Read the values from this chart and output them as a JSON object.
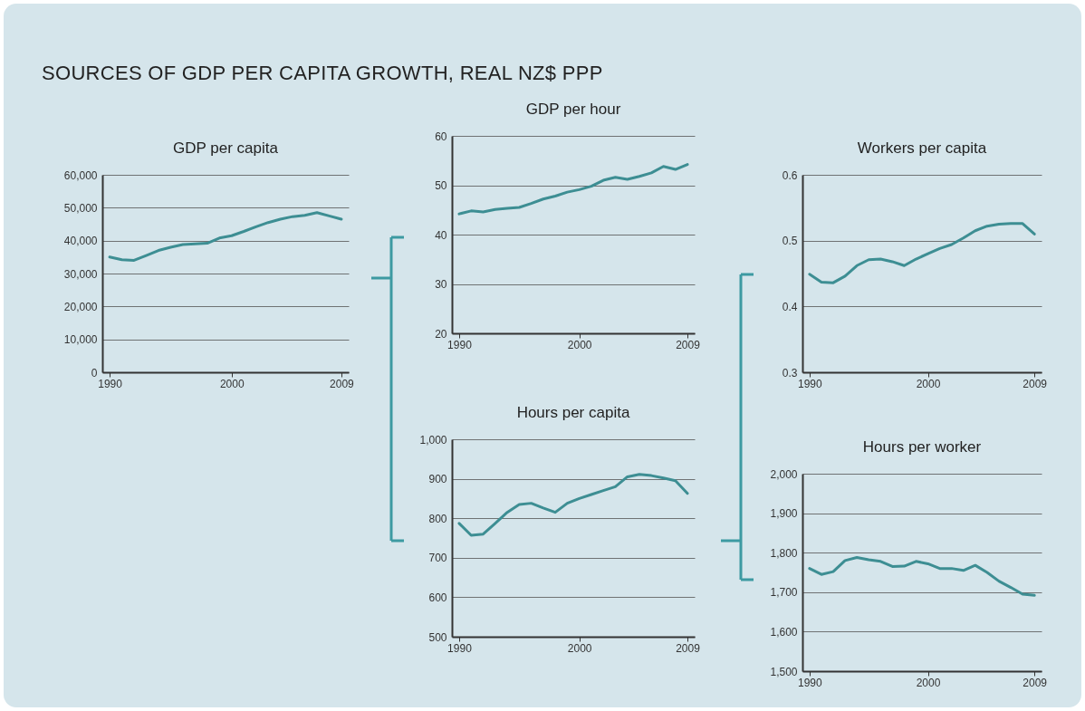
{
  "chart_data": [
    {
      "type": "line",
      "title": "GDP per capita",
      "annotations": [
        "SOURCES OF GDP PER CAPITA GROWTH, REAL NZ$ PPP"
      ],
      "x": [
        1990,
        1991,
        1992,
        1993,
        1994,
        1995,
        1996,
        1997,
        1998,
        1999,
        2000,
        2001,
        2002,
        2003,
        2004,
        2005,
        2006,
        2007,
        2008,
        2009
      ],
      "series": [
        {
          "color": "#3d8e93",
          "values": [
            35000,
            34200,
            34000,
            35500,
            37000,
            38000,
            38800,
            39000,
            39200,
            40800,
            41500,
            42800,
            44200,
            45500,
            46500,
            47300,
            47700,
            48500,
            47500,
            46500
          ]
        }
      ],
      "xlim": [
        1989.4,
        2009.6
      ],
      "xticks": [
        1990,
        2000,
        2009
      ],
      "ylim": [
        0,
        60000
      ],
      "yticks": [
        0,
        {
          "value": 10000,
          "label": "10,000"
        },
        {
          "value": 20000,
          "label": "20,000"
        },
        {
          "value": 30000,
          "label": "30,000"
        },
        {
          "value": 40000,
          "label": "40,000"
        },
        {
          "value": 50000,
          "label": "50,000"
        },
        {
          "value": 60000,
          "label": "60,000"
        }
      ],
      "grid": "y"
    },
    {
      "type": "line",
      "title": "GDP per hour",
      "x": [
        1990,
        1991,
        1992,
        1993,
        1994,
        1995,
        1996,
        1997,
        1998,
        1999,
        2000,
        2001,
        2002,
        2003,
        2004,
        2005,
        2006,
        2007,
        2008,
        2009
      ],
      "series": [
        {
          "color": "#3d8e93",
          "values": [
            44.2,
            44.8,
            44.6,
            45.1,
            45.3,
            45.5,
            46.3,
            47.2,
            47.8,
            48.6,
            49.1,
            49.8,
            51.0,
            51.6,
            51.2,
            51.8,
            52.5,
            53.8,
            53.2,
            54.2
          ]
        }
      ],
      "xlim": [
        1989.4,
        2009.6
      ],
      "xticks": [
        1990,
        2000,
        2009
      ],
      "ylim": [
        20,
        60
      ],
      "yticks": [
        20,
        30,
        40,
        50,
        60
      ],
      "grid": "y"
    },
    {
      "type": "line",
      "title": "Hours per capita",
      "x": [
        1990,
        1991,
        1992,
        1993,
        1994,
        1995,
        1996,
        1997,
        1998,
        1999,
        2000,
        2001,
        2002,
        2003,
        2004,
        2005,
        2006,
        2007,
        2008,
        2009
      ],
      "series": [
        {
          "color": "#3d8e93",
          "values": [
            787,
            757,
            760,
            787,
            815,
            835,
            838,
            826,
            815,
            838,
            850,
            860,
            870,
            880,
            905,
            911,
            908,
            902,
            895,
            863
          ]
        }
      ],
      "xlim": [
        1989.4,
        2009.6
      ],
      "xticks": [
        1990,
        2000,
        2009
      ],
      "ylim": [
        500,
        1000
      ],
      "yticks": [
        500,
        600,
        700,
        800,
        900,
        {
          "value": 1000,
          "label": "1,000"
        }
      ],
      "grid": "y"
    },
    {
      "type": "line",
      "title": "Workers per capita",
      "x": [
        1990,
        1991,
        1992,
        1993,
        1994,
        1995,
        1996,
        1997,
        1998,
        1999,
        2000,
        2001,
        2002,
        2003,
        2004,
        2005,
        2006,
        2007,
        2008,
        2009
      ],
      "series": [
        {
          "color": "#3d8e93",
          "values": [
            0.449,
            0.437,
            0.436,
            0.446,
            0.462,
            0.471,
            0.472,
            0.468,
            0.462,
            0.472,
            0.48,
            0.488,
            0.494,
            0.504,
            0.515,
            0.522,
            0.525,
            0.526,
            0.526,
            0.51
          ]
        }
      ],
      "xlim": [
        1989.4,
        2009.6
      ],
      "xticks": [
        1990,
        2000,
        2009
      ],
      "ylim": [
        0.3,
        0.6
      ],
      "yticks": [
        0.3,
        0.4,
        0.5,
        0.6
      ],
      "grid": "y"
    },
    {
      "type": "line",
      "title": "Hours per worker",
      "x": [
        1990,
        1991,
        1992,
        1993,
        1994,
        1995,
        1996,
        1997,
        1998,
        1999,
        2000,
        2001,
        2002,
        2003,
        2004,
        2005,
        2006,
        2007,
        2008,
        2009
      ],
      "series": [
        {
          "color": "#3d8e93",
          "values": [
            1760,
            1745,
            1752,
            1780,
            1788,
            1782,
            1778,
            1765,
            1766,
            1778,
            1772,
            1760,
            1760,
            1755,
            1768,
            1750,
            1728,
            1712,
            1695,
            1692
          ]
        }
      ],
      "xlim": [
        1989.4,
        2009.6
      ],
      "xticks": [
        1990,
        2000,
        2009
      ],
      "ylim": [
        1500,
        2000
      ],
      "yticks": [
        {
          "value": 1500,
          "label": "1,500"
        },
        {
          "value": 1600,
          "label": "1,600"
        },
        {
          "value": 1700,
          "label": "1,700"
        },
        {
          "value": 1800,
          "label": "1,800"
        },
        {
          "value": 1900,
          "label": "1,900"
        },
        {
          "value": 2000,
          "label": "2,000"
        }
      ],
      "grid": "y"
    }
  ]
}
